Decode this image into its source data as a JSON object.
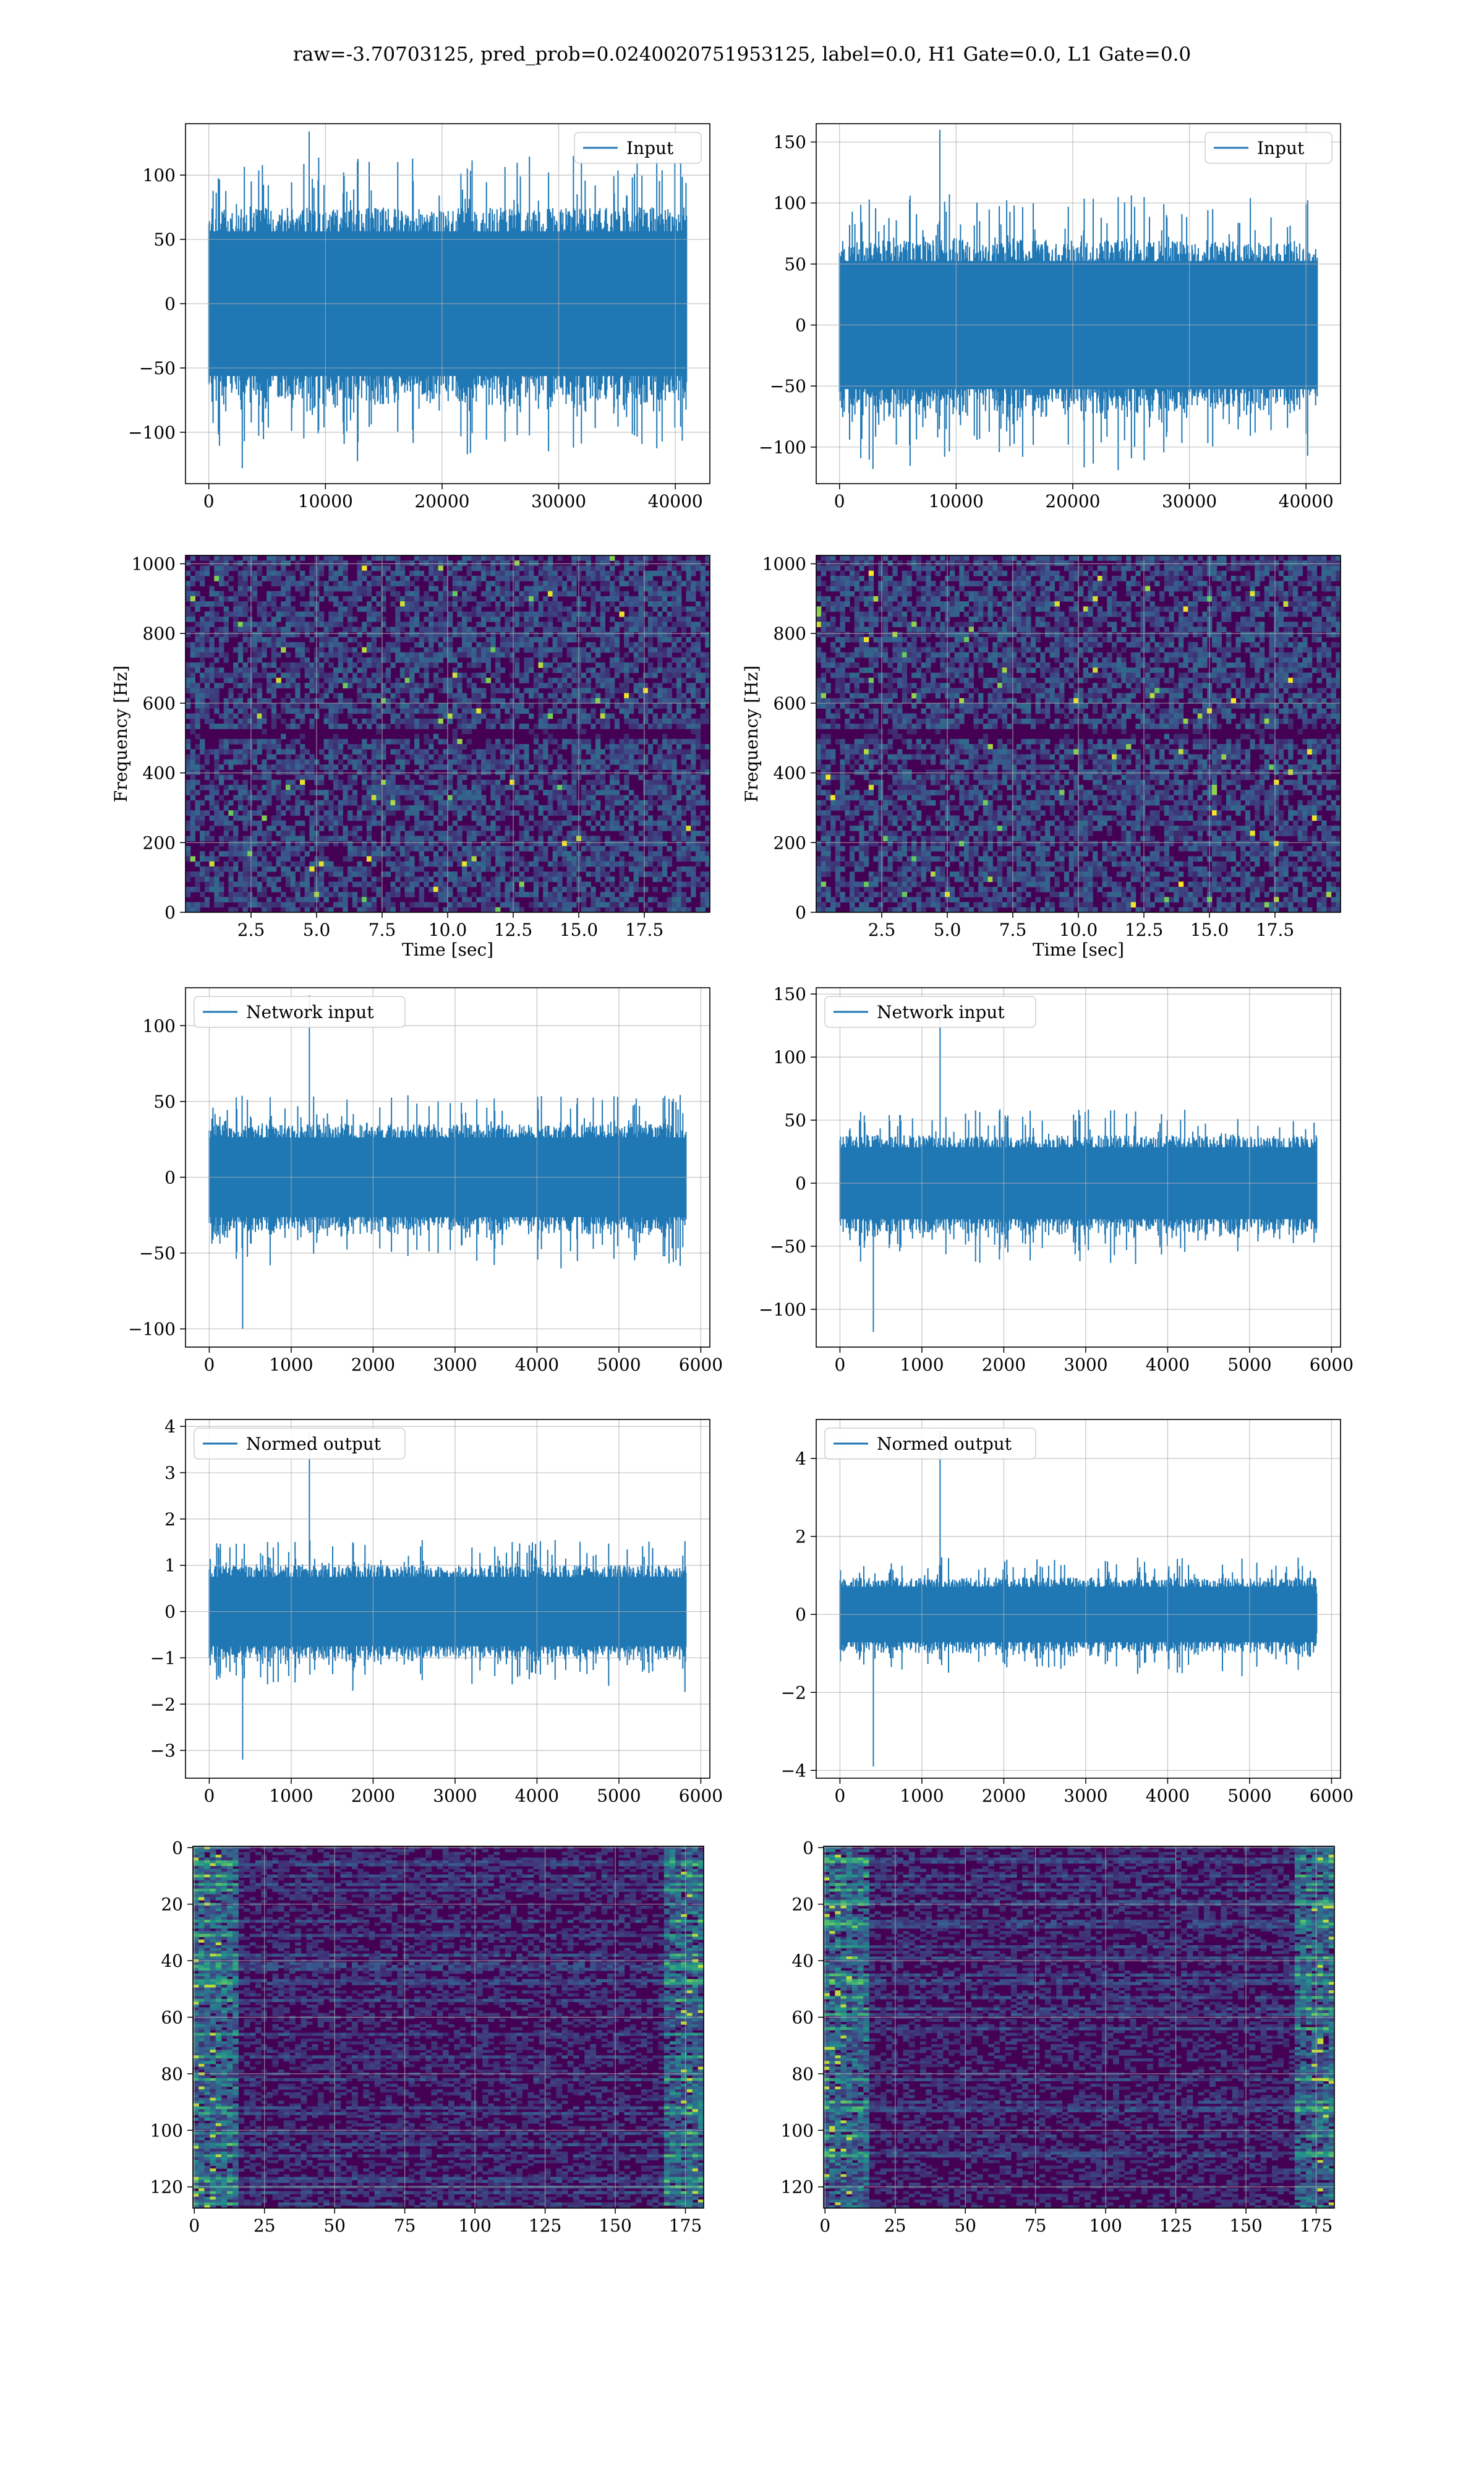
{
  "figure": {
    "title": "raw=-3.70703125, pred_prob=0.0240020751953125, label=0.0, H1 Gate=0.0, L1 Gate=0.0"
  },
  "colors": {
    "line": "#1f77b4",
    "grid": "#b0b0b0",
    "viridis_low": "#440154",
    "viridis_mid": "#21918c",
    "viridis_high": "#fde725"
  },
  "chart_data": [
    {
      "id": "h1-input",
      "type": "line",
      "legend": "Input",
      "legend_loc": "upper right",
      "xlim": [
        -2000,
        42960
      ],
      "ylim": [
        -140,
        140
      ],
      "xticks": [
        0,
        10000,
        20000,
        30000,
        40000
      ],
      "yticks": [
        -100,
        -50,
        0,
        50,
        100
      ],
      "grid": true,
      "series": [
        {
          "name": "Input",
          "n_samples": 40960,
          "core_amp": 75,
          "peak_max": 134,
          "peak_min": -128
        }
      ]
    },
    {
      "id": "l1-input",
      "type": "line",
      "legend": "Input",
      "legend_loc": "upper right",
      "xlim": [
        -2000,
        42960
      ],
      "ylim": [
        -130,
        165
      ],
      "xticks": [
        0,
        10000,
        20000,
        30000,
        40000
      ],
      "yticks": [
        -100,
        -50,
        0,
        50,
        100,
        150
      ],
      "grid": true,
      "series": [
        {
          "name": "Input",
          "n_samples": 40960,
          "core_amp": 70,
          "peak_max": 160,
          "peak_min": -118
        }
      ]
    },
    {
      "id": "h1-spectrogram",
      "type": "heatmap",
      "colormap": "viridis",
      "xlim": [
        0,
        20
      ],
      "ylim": [
        0,
        1024
      ],
      "xticks": [
        2.5,
        5.0,
        7.5,
        10.0,
        12.5,
        15.0,
        17.5
      ],
      "yticks": [
        0,
        200,
        400,
        600,
        800,
        1000
      ],
      "xlabel": "Time [sec]",
      "ylabel": "Frequency [Hz]",
      "grid": true
    },
    {
      "id": "l1-spectrogram",
      "type": "heatmap",
      "colormap": "viridis",
      "xlim": [
        0,
        20
      ],
      "ylim": [
        0,
        1024
      ],
      "xticks": [
        2.5,
        5.0,
        7.5,
        10.0,
        12.5,
        15.0,
        17.5
      ],
      "yticks": [
        0,
        200,
        400,
        600,
        800,
        1000
      ],
      "xlabel": "Time [sec]",
      "ylabel": "Frequency [Hz]",
      "grid": true
    },
    {
      "id": "h1-network-input",
      "type": "line",
      "legend": "Network input",
      "legend_loc": "upper left",
      "xlim": [
        -290,
        6110
      ],
      "ylim": [
        -112,
        125
      ],
      "xticks": [
        0,
        1000,
        2000,
        3000,
        4000,
        5000,
        6000
      ],
      "yticks": [
        -100,
        -50,
        0,
        50,
        100
      ],
      "grid": true,
      "series": [
        {
          "name": "Network input",
          "n_samples": 5820,
          "core_amp": 35,
          "peak_max": 120,
          "peak_min": -100
        }
      ]
    },
    {
      "id": "l1-network-input",
      "type": "line",
      "legend": "Network input",
      "legend_loc": "upper left",
      "xlim": [
        -290,
        6110
      ],
      "ylim": [
        -130,
        155
      ],
      "xticks": [
        0,
        1000,
        2000,
        3000,
        4000,
        5000,
        6000
      ],
      "yticks": [
        -100,
        -50,
        0,
        50,
        100,
        150
      ],
      "grid": true,
      "series": [
        {
          "name": "Network input",
          "n_samples": 5820,
          "core_amp": 38,
          "peak_max": 145,
          "peak_min": -118
        }
      ]
    },
    {
      "id": "h1-normed-output",
      "type": "line",
      "legend": "Normed output",
      "legend_loc": "upper left",
      "xlim": [
        -290,
        6110
      ],
      "ylim": [
        -3.6,
        4.15
      ],
      "xticks": [
        0,
        1000,
        2000,
        3000,
        4000,
        5000,
        6000
      ],
      "yticks": [
        -3,
        -2,
        -1,
        0,
        1,
        2,
        3,
        4
      ],
      "grid": true,
      "series": [
        {
          "name": "Normed output",
          "n_samples": 5820,
          "core_amp": 1.0,
          "peak_max": 3.85,
          "peak_min": -3.2
        }
      ]
    },
    {
      "id": "l1-normed-output",
      "type": "line",
      "legend": "Normed output",
      "legend_loc": "upper left",
      "xlim": [
        -290,
        6110
      ],
      "ylim": [
        -4.2,
        5.0
      ],
      "xticks": [
        0,
        1000,
        2000,
        3000,
        4000,
        5000,
        6000
      ],
      "yticks": [
        -4,
        -2,
        0,
        2,
        4
      ],
      "grid": true,
      "series": [
        {
          "name": "Normed output",
          "n_samples": 5820,
          "core_amp": 0.95,
          "peak_max": 4.7,
          "peak_min": -3.9
        }
      ]
    },
    {
      "id": "h1-feature-map",
      "type": "heatmap",
      "colormap": "viridis",
      "xlim": [
        -0.5,
        181.5
      ],
      "ylim": [
        127.5,
        -0.5
      ],
      "y_inverted": true,
      "xticks": [
        0,
        25,
        50,
        75,
        100,
        125,
        150,
        175
      ],
      "yticks": [
        0,
        20,
        40,
        60,
        80,
        100,
        120
      ],
      "grid": true
    },
    {
      "id": "l1-feature-map",
      "type": "heatmap",
      "colormap": "viridis",
      "xlim": [
        -0.5,
        181.5
      ],
      "ylim": [
        127.5,
        -0.5
      ],
      "y_inverted": true,
      "xticks": [
        0,
        25,
        50,
        75,
        100,
        125,
        150,
        175
      ],
      "yticks": [
        0,
        20,
        40,
        60,
        80,
        100,
        120
      ],
      "grid": true
    }
  ]
}
